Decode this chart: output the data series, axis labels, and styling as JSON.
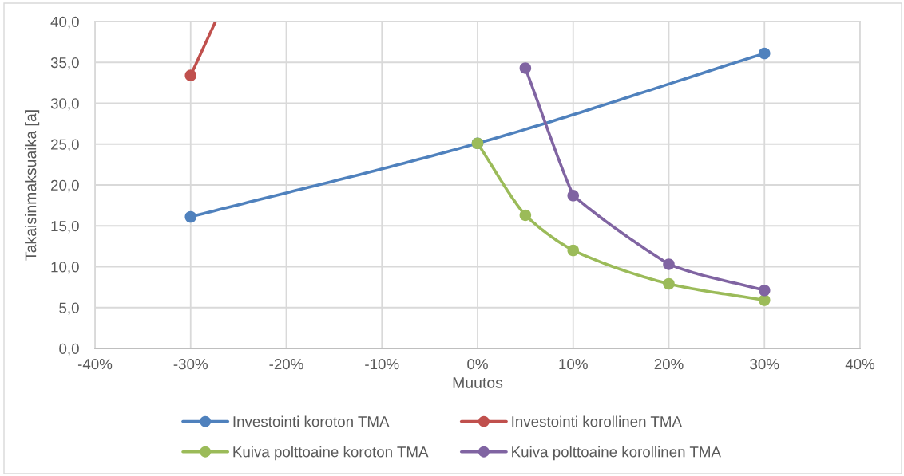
{
  "chart_data": {
    "type": "line",
    "xlabel": "Muutos",
    "ylabel": "Takaisinmaksuaika [a]",
    "xlim": [
      -40,
      40
    ],
    "xticks": [
      {
        "value": -40,
        "label": "-40%"
      },
      {
        "value": -30,
        "label": "-30%"
      },
      {
        "value": -20,
        "label": "-20%"
      },
      {
        "value": -10,
        "label": "-10%"
      },
      {
        "value": 0,
        "label": "0%"
      },
      {
        "value": 10,
        "label": "10%"
      },
      {
        "value": 20,
        "label": "20%"
      },
      {
        "value": 30,
        "label": "30%"
      },
      {
        "value": 40,
        "label": "40%"
      }
    ],
    "ylim": [
      0,
      40
    ],
    "yticks": [
      {
        "value": 0,
        "label": "0,0"
      },
      {
        "value": 5,
        "label": "5,0"
      },
      {
        "value": 10,
        "label": "10,0"
      },
      {
        "value": 15,
        "label": "15,0"
      },
      {
        "value": 20,
        "label": "20,0"
      },
      {
        "value": 25,
        "label": "25,0"
      },
      {
        "value": 30,
        "label": "30,0"
      },
      {
        "value": 35,
        "label": "35,0"
      },
      {
        "value": 40,
        "label": "40,0"
      }
    ],
    "grid": true,
    "legend": "bottom",
    "marker": "circle",
    "line_style": "solid",
    "series": [
      {
        "name": "Investointi koroton TMA",
        "color": "#4f81bd",
        "x": [
          -30,
          0,
          30
        ],
        "values": [
          16.1,
          25.1,
          36.1
        ]
      },
      {
        "name": "Investointi korollinen TMA",
        "color": "#c0504d",
        "x": [
          -30,
          -27.4
        ],
        "values": [
          33.4,
          40.0
        ]
      },
      {
        "name": "Kuiva polttoaine koroton TMA",
        "color": "#9bbb59",
        "x": [
          0,
          5,
          10,
          20,
          30
        ],
        "values": [
          25.1,
          16.3,
          12.0,
          7.9,
          5.9
        ]
      },
      {
        "name": "Kuiva polttoaine korollinen TMA",
        "color": "#8064a2",
        "x": [
          5,
          10,
          20,
          30
        ],
        "values": [
          34.3,
          18.7,
          10.3,
          7.1
        ]
      }
    ]
  }
}
